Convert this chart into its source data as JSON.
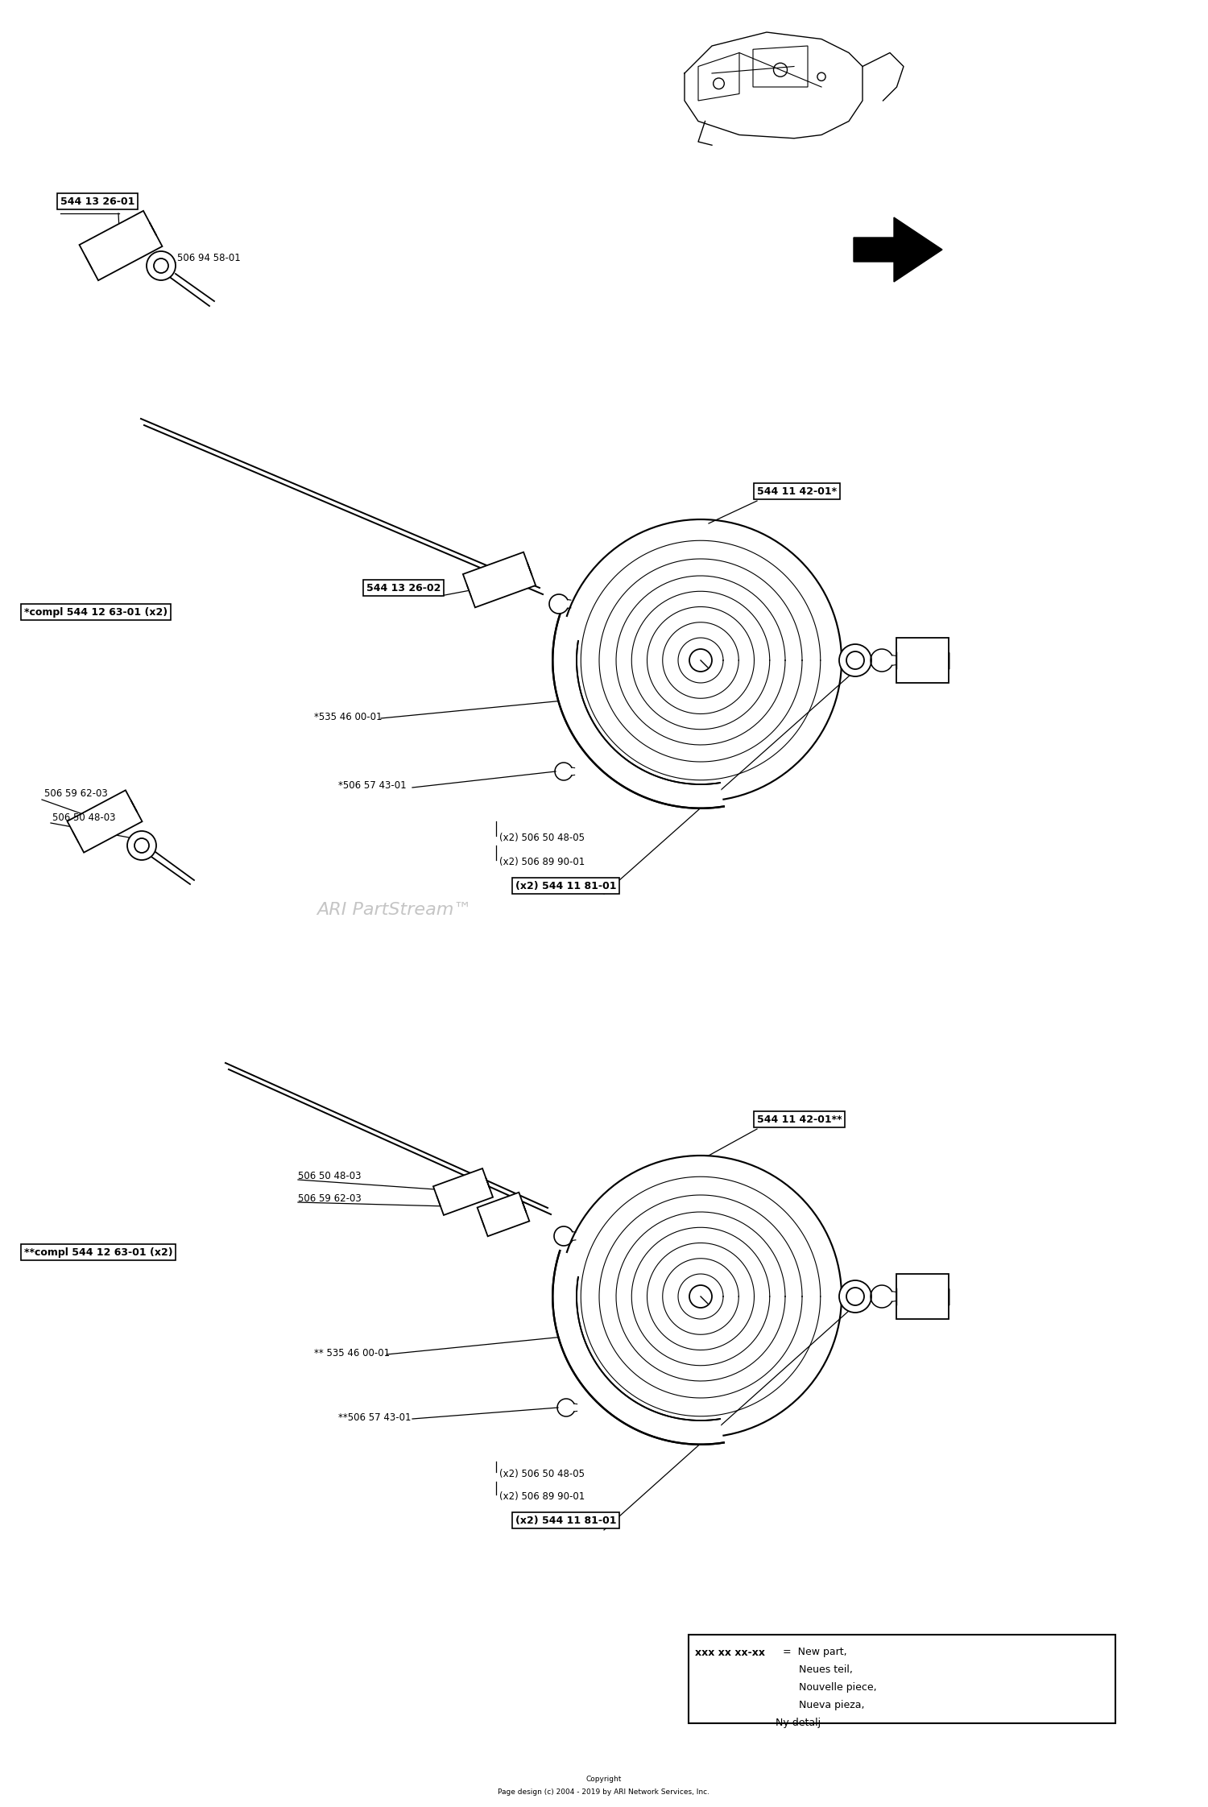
{
  "bg_color": "#ffffff",
  "watermark": "ARI PartStream™",
  "copyright": "Copyright\nPage design (c) 2004 - 2019 by ARI Network Services, Inc.",
  "top_left": {
    "label_box": "544 13 26-01",
    "label_plain": "506 94 58-01"
  },
  "section1": {
    "label_assembly": "544 11 42-01*",
    "label_shaft": "544 13 26-02",
    "label_spring": "*535 46 00-01",
    "label_clip": "*506 57 43-01",
    "label_washer": "(x2) 506 50 48-05",
    "label_nut": "(x2) 506 89 90-01",
    "label_bolt": "(x2) 544 11 81-01",
    "label_compl": "*compl 544 12 63-01 (x2)"
  },
  "section1_small": {
    "label1": "506 59 62-03",
    "label2": "506 50 48-03"
  },
  "section2": {
    "label_assembly": "544 11 42-01**",
    "label_shaft1": "506 50 48-03",
    "label_shaft2": "506 59 62-03",
    "label_spring": "** 535 46 00-01",
    "label_clip": "**506 57 43-01",
    "label_washer": "(x2) 506 50 48-05",
    "label_nut": "(x2) 506 89 90-01",
    "label_bolt": "(x2) 544 11 81-01",
    "label_compl": "**compl 544 12 63-01 (x2)"
  }
}
